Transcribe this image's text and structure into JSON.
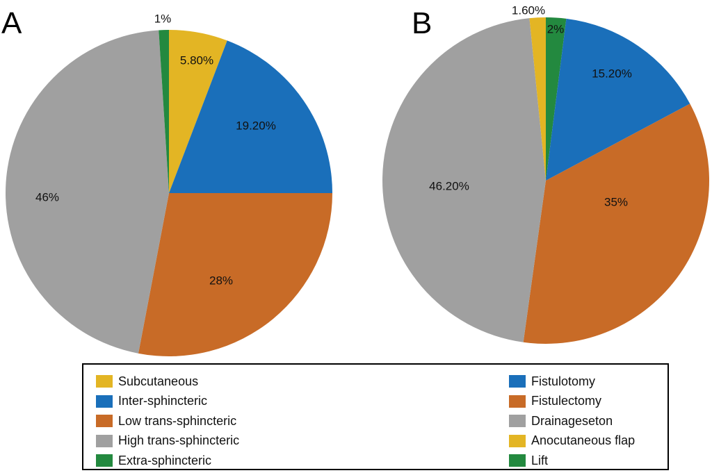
{
  "chart_data": [
    {
      "type": "pie",
      "panel": "A",
      "title": "",
      "start": "top",
      "direction": "clockwise",
      "slices": [
        {
          "name": "Subcutaneous",
          "value": 5.8,
          "label": "5.80%",
          "color": "#E3B524"
        },
        {
          "name": "Inter-sphincteric",
          "value": 19.2,
          "label": "19.20%",
          "color": "#1A6FBA"
        },
        {
          "name": "Low trans-sphincteric",
          "value": 28,
          "label": "28%",
          "color": "#C86B27"
        },
        {
          "name": "High trans-sphincteric",
          "value": 46,
          "label": "46%",
          "color": "#A0A0A0"
        },
        {
          "name": "Extra-sphincteric",
          "value": 1,
          "label": "1%",
          "color": "#23893F"
        }
      ]
    },
    {
      "type": "pie",
      "panel": "B",
      "title": "",
      "start": "top",
      "direction": "clockwise",
      "slices": [
        {
          "name": "Lift",
          "value": 2,
          "label": "2%",
          "color": "#23893F"
        },
        {
          "name": "Fistulotomy",
          "value": 15.2,
          "label": "15.20%",
          "color": "#1A6FBA"
        },
        {
          "name": "Fistulectomy",
          "value": 35,
          "label": "35%",
          "color": "#C86B27"
        },
        {
          "name": "Drainageseton",
          "value": 46.2,
          "label": "46.20%",
          "color": "#A0A0A0"
        },
        {
          "name": "Anocutaneous flap",
          "value": 1.6,
          "label": "1.60%",
          "color": "#E3B524"
        }
      ]
    }
  ],
  "panels": {
    "a_label": "A",
    "b_label": "B"
  },
  "legend": {
    "left": [
      {
        "label": "Subcutaneous",
        "color": "#E3B524"
      },
      {
        "label": "Inter-sphincteric",
        "color": "#1A6FBA"
      },
      {
        "label": "Low trans-sphincteric",
        "color": "#C86B27"
      },
      {
        "label": "High trans-sphincteric",
        "color": "#A0A0A0"
      },
      {
        "label": "Extra-sphincteric",
        "color": "#23893F"
      }
    ],
    "right": [
      {
        "label": "Fistulotomy",
        "color": "#1A6FBA"
      },
      {
        "label": "Fistulectomy",
        "color": "#C86B27"
      },
      {
        "label": "Drainageseton",
        "color": "#A0A0A0"
      },
      {
        "label": "Anocutaneous flap",
        "color": "#E3B524"
      },
      {
        "label": "Lift",
        "color": "#23893F"
      }
    ]
  }
}
